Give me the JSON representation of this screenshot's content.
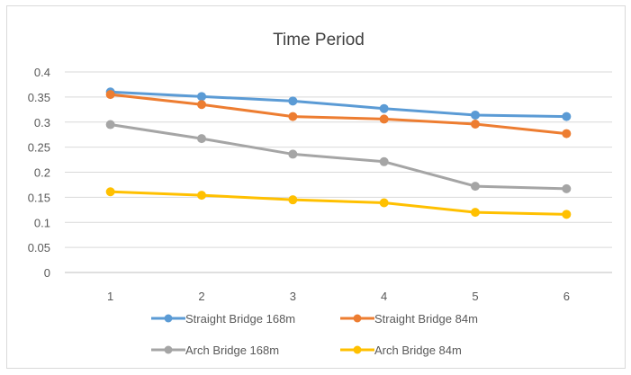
{
  "chart_data": {
    "type": "line",
    "title": "Time Period",
    "xlabel": "",
    "ylabel": "",
    "x": [
      1,
      2,
      3,
      4,
      5,
      6
    ],
    "ylim": [
      0,
      0.4
    ],
    "yticks": [
      "0",
      "0.05",
      "0.1",
      "0.15",
      "0.2",
      "0.25",
      "0.3",
      "0.35",
      "0.4"
    ],
    "grid": true,
    "legend_position": "bottom",
    "series": [
      {
        "name": "Straight Bridge 168m",
        "color": "#5b9bd5",
        "values": [
          0.36,
          0.351,
          0.342,
          0.327,
          0.314,
          0.311
        ]
      },
      {
        "name": "Straight Bridge 84m",
        "color": "#ed7d31",
        "values": [
          0.355,
          0.335,
          0.311,
          0.306,
          0.296,
          0.277
        ]
      },
      {
        "name": "Arch Bridge 168m",
        "color": "#a5a5a5",
        "values": [
          0.295,
          0.267,
          0.236,
          0.221,
          0.172,
          0.167
        ]
      },
      {
        "name": "Arch Bridge 84m",
        "color": "#ffc000",
        "values": [
          0.161,
          0.154,
          0.145,
          0.139,
          0.12,
          0.116
        ]
      }
    ]
  }
}
